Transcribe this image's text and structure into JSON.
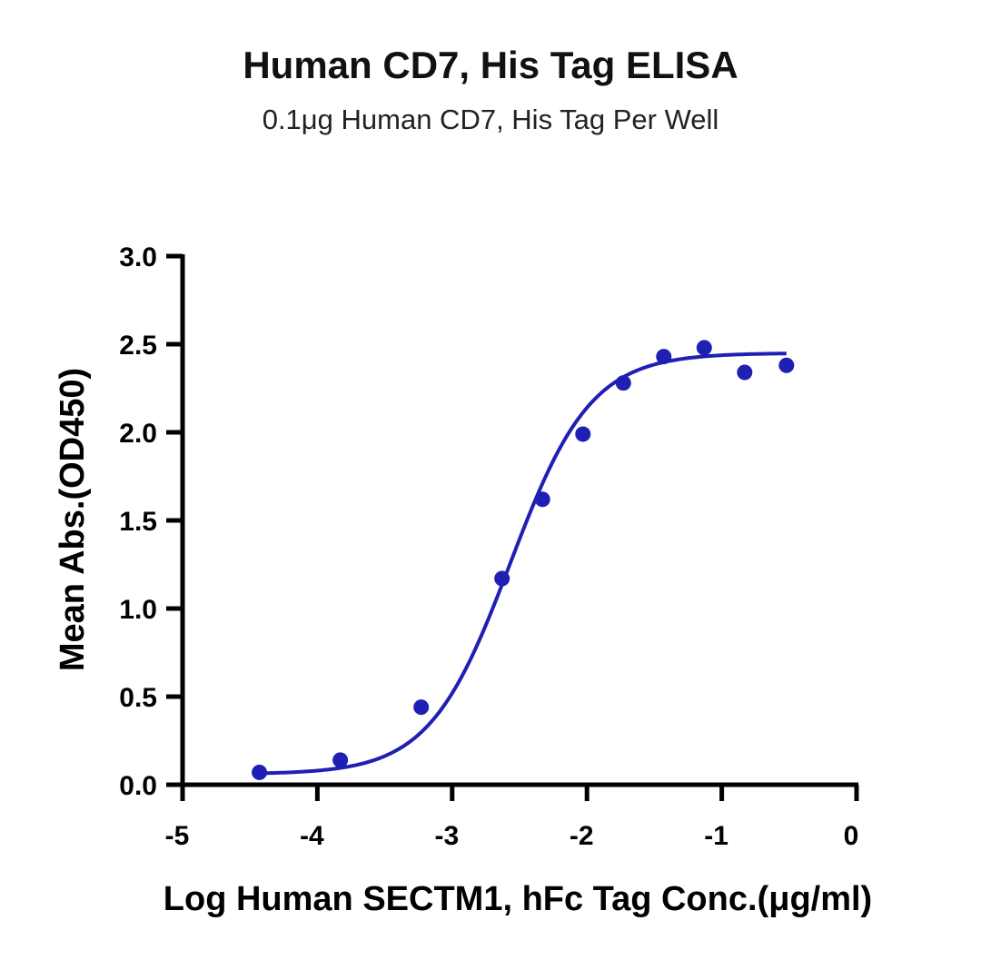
{
  "chart_data": {
    "type": "scatter",
    "title": "Human CD7, His Tag ELISA",
    "subtitle": "0.1μg Human CD7, His Tag Per Well",
    "xlabel": "Log Human SECTM1, hFc Tag Conc.(μg/ml)",
    "ylabel": "Mean Abs.(OD450)",
    "xlim": [
      -5,
      0
    ],
    "ylim": [
      0,
      3.0
    ],
    "x_ticks": [
      -5,
      -4,
      -3,
      -2,
      -1,
      0
    ],
    "x_tick_labels": [
      "-5",
      "-4",
      "-3",
      "-2",
      "-1",
      "0"
    ],
    "y_ticks": [
      0,
      0.5,
      1.0,
      1.5,
      2.0,
      2.5,
      3.0
    ],
    "y_tick_labels": [
      "0.0",
      "0.5",
      "1.0",
      "1.5",
      "2.0",
      "2.5",
      "3.0"
    ],
    "color": "#1f1fb4",
    "grid": false,
    "legend": "none",
    "series": [
      {
        "x": [
          -4.43,
          -3.83,
          -3.23,
          -2.63,
          -2.33,
          -2.03,
          -1.73,
          -1.43,
          -1.13,
          -0.83,
          -0.52
        ],
        "y": [
          0.07,
          0.14,
          0.44,
          1.17,
          1.62,
          1.99,
          2.28,
          2.43,
          2.48,
          2.34,
          2.38
        ]
      }
    ],
    "fit": {
      "type": "4PL",
      "bottom": 0.06,
      "top": 2.45,
      "logEC50": -2.57,
      "hill": 1.45,
      "x_range": [
        -4.43,
        -0.52
      ]
    }
  }
}
